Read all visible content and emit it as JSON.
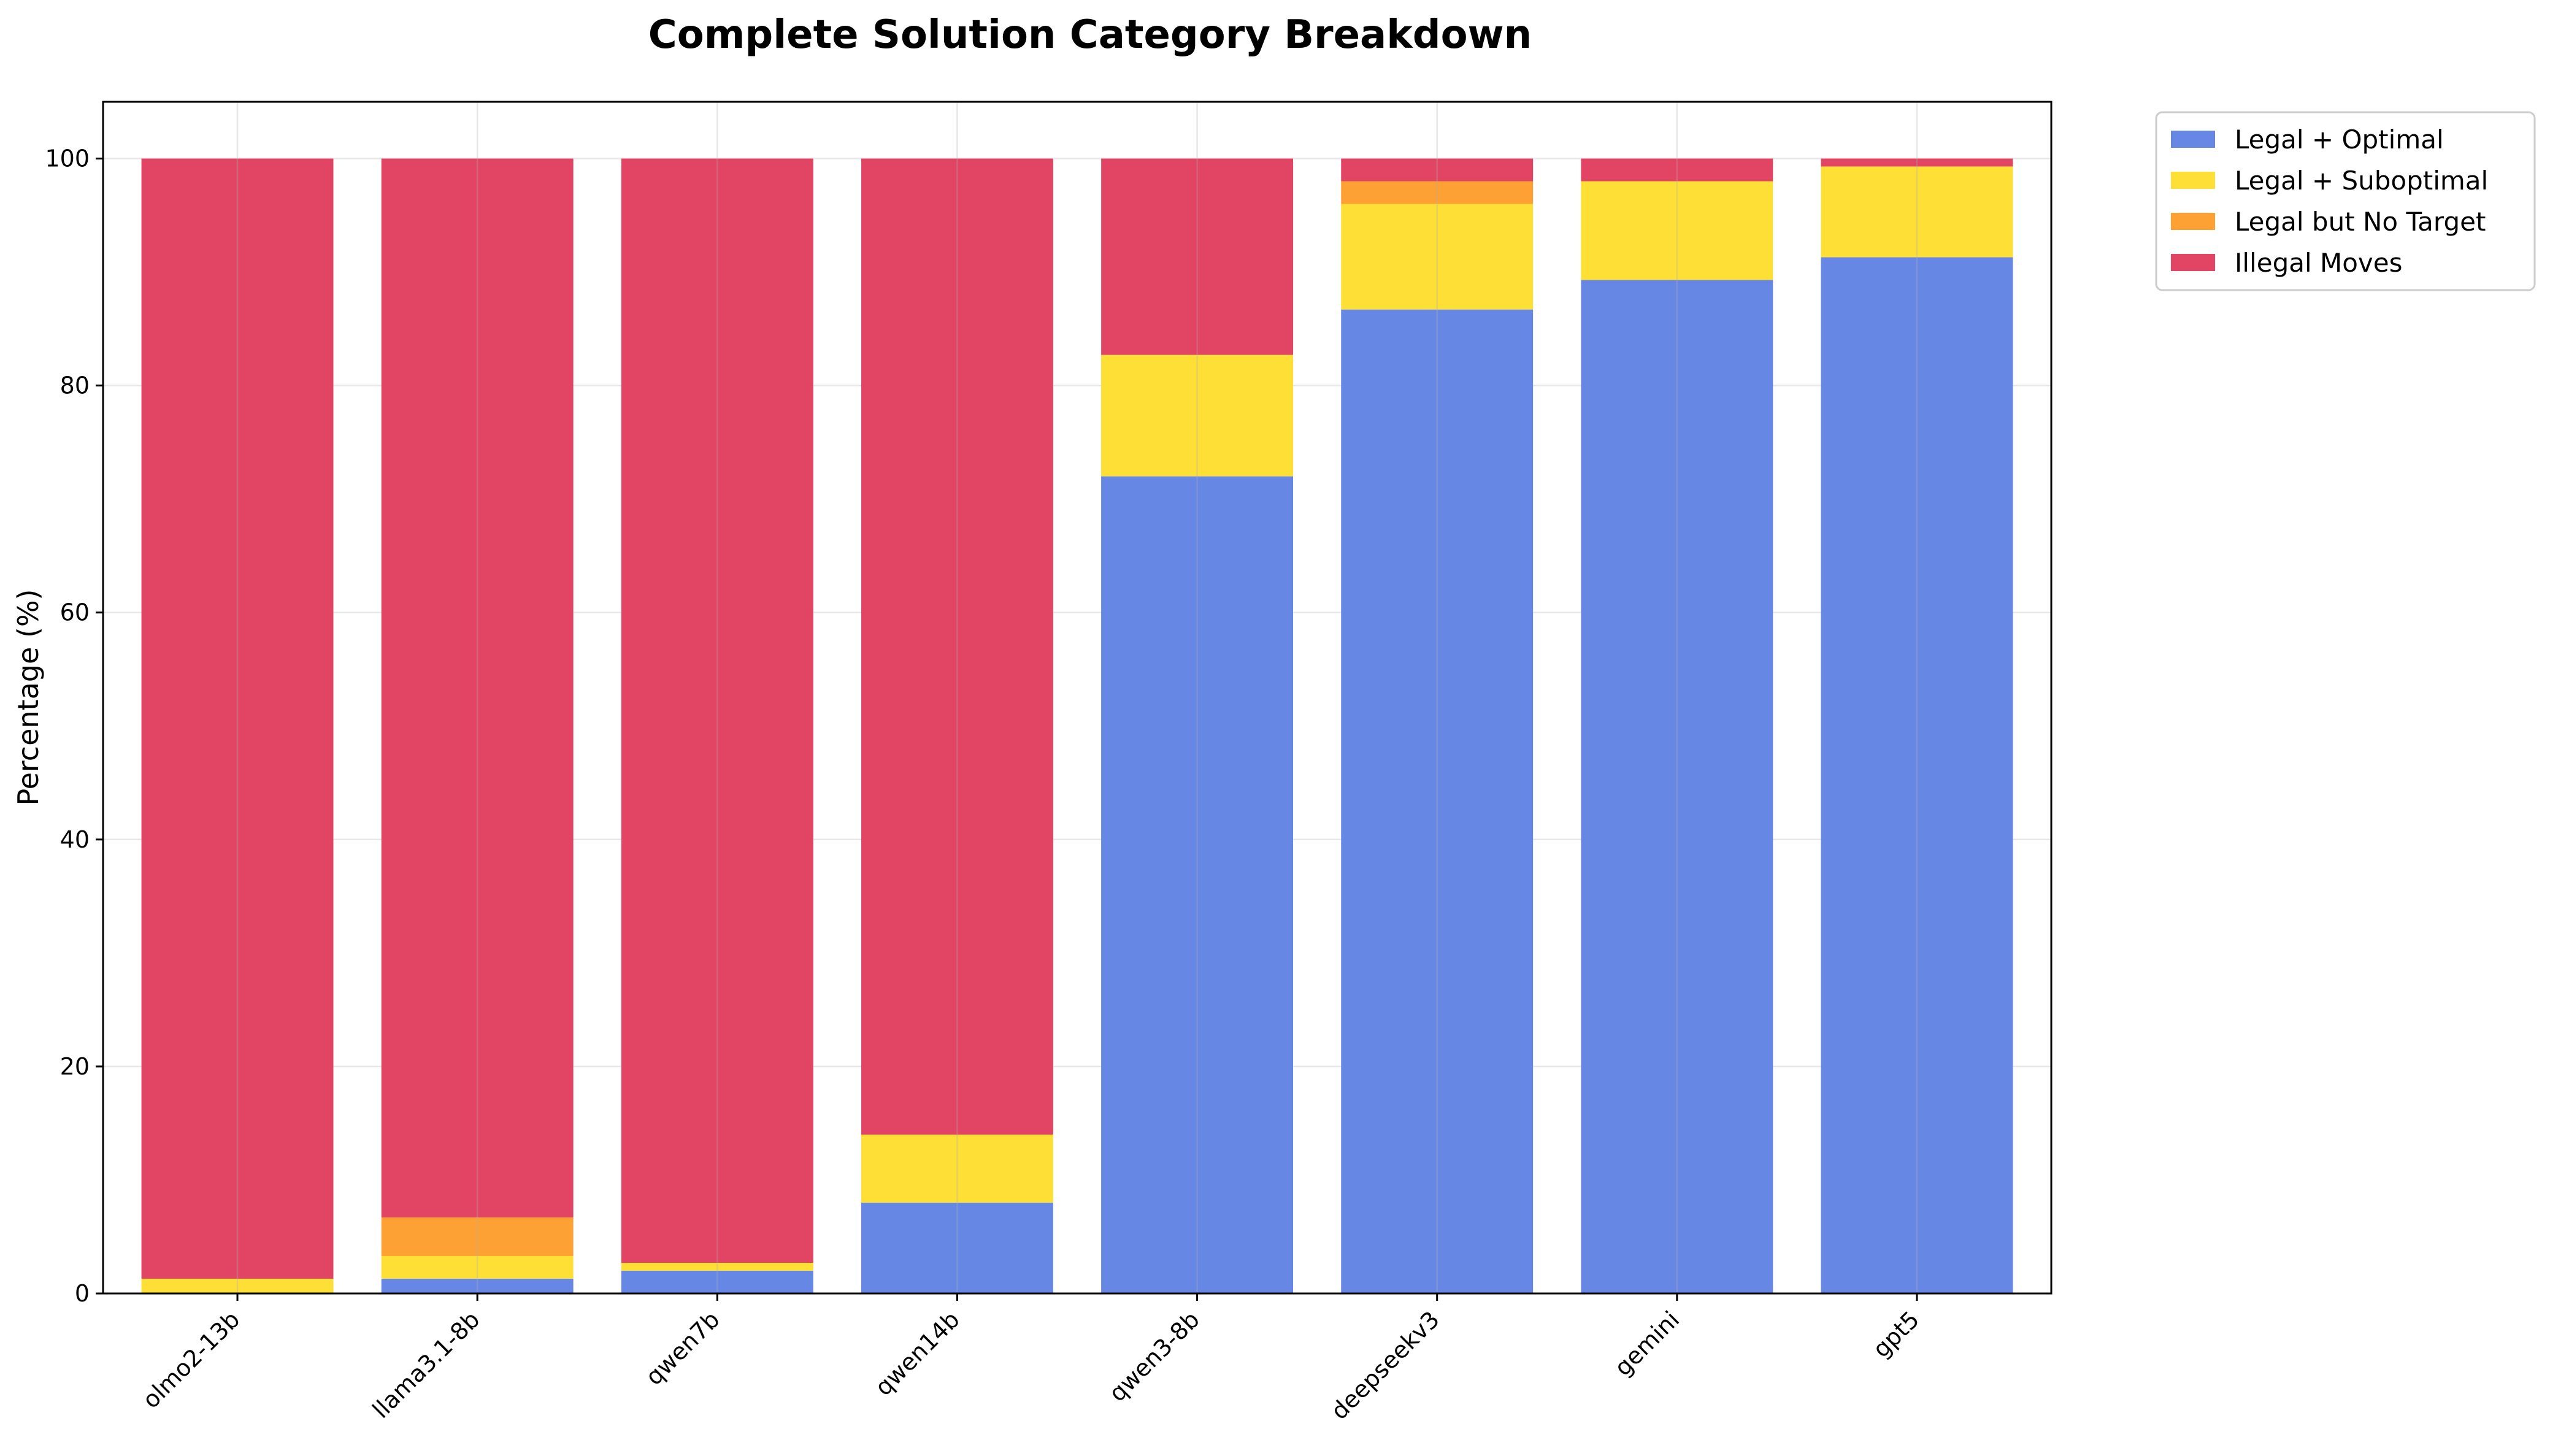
{
  "chart_data": {
    "type": "bar",
    "stacked": true,
    "title": "Complete Solution Category Breakdown",
    "xlabel": "",
    "ylabel": "Percentage (%)",
    "ylim": [
      0,
      105
    ],
    "yticks": [
      0,
      20,
      40,
      60,
      80,
      100
    ],
    "grid": true,
    "legend_position": "outside-top-right",
    "categories": [
      "olmo2-13b",
      "llama3.1-8b",
      "qwen7b",
      "qwen14b",
      "qwen3-8b",
      "deepseekv3",
      "gemini",
      "gpt5"
    ],
    "series": [
      {
        "name": "Legal + Optimal",
        "color": "#6787e5",
        "values": [
          0,
          1.3,
          2.0,
          8.0,
          72.0,
          86.7,
          89.3,
          91.3
        ]
      },
      {
        "name": "Legal + Suboptimal",
        "color": "#fedf35",
        "values": [
          1.3,
          2.0,
          0.7,
          6.0,
          10.7,
          9.3,
          8.7,
          8.0
        ]
      },
      {
        "name": "Legal but No Target",
        "color": "#fea134",
        "values": [
          0,
          3.4,
          0,
          0,
          0,
          2.0,
          0,
          0
        ]
      },
      {
        "name": "Illegal Moves",
        "color": "#e24563",
        "values": [
          98.7,
          93.3,
          97.3,
          86.0,
          17.3,
          2.0,
          2.0,
          0.7
        ]
      }
    ]
  }
}
